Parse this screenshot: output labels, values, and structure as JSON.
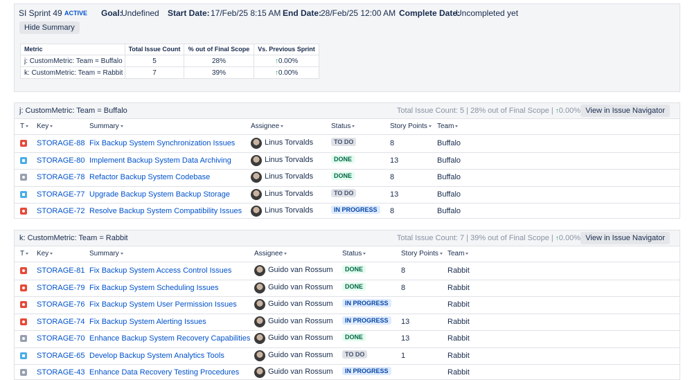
{
  "header": {
    "sprint": "SI Sprint 49",
    "state": "ACTIVE",
    "goal_label": "Goal:",
    "goal": "Undefined",
    "start_label": "Start Date:",
    "start": "17/Feb/25 8:15 AM",
    "end_label": "End Date:",
    "end": "28/Feb/25 12:00 AM",
    "complete_label": "Complete Date:",
    "complete": "Uncompleted yet",
    "toggle": "Hide Summary"
  },
  "summary": {
    "columns": [
      "Metric",
      "Total Issue Count",
      "% out of Final Scope",
      "Vs. Previous Sprint"
    ],
    "rows": [
      [
        "j: CustomMetric: Team = Buffalo",
        "5",
        "28%",
        "0.00%"
      ],
      [
        "k: CustomMetric: Team = Rabbit",
        "7",
        "39%",
        "0.00%"
      ]
    ]
  },
  "groups": [
    {
      "title": "j: CustomMetric: Team = Buffalo",
      "stats": "Total Issue Count: 5 | 28% out of Final Scope |",
      "delta": "0.00%",
      "button": "View in Issue Navigator",
      "columns": [
        "T",
        "Key",
        "Summary",
        "Assignee",
        "Status",
        "Story Points",
        "Team"
      ],
      "issues": [
        {
          "type": "bug",
          "key": "STORAGE-88",
          "summary": "Fix Backup System Synchronization Issues",
          "assignee": "Linus Torvalds",
          "status": "TO DO",
          "points": "8",
          "team": "Buffalo"
        },
        {
          "type": "task",
          "key": "STORAGE-80",
          "summary": "Implement Backup System Data Archiving",
          "assignee": "Linus Torvalds",
          "status": "DONE",
          "points": "13",
          "team": "Buffalo"
        },
        {
          "type": "improvement",
          "key": "STORAGE-78",
          "summary": "Refactor Backup System Codebase",
          "assignee": "Linus Torvalds",
          "status": "DONE",
          "points": "8",
          "team": "Buffalo"
        },
        {
          "type": "task",
          "key": "STORAGE-77",
          "summary": "Upgrade Backup System Backup Storage",
          "assignee": "Linus Torvalds",
          "status": "TO DO",
          "points": "13",
          "team": "Buffalo"
        },
        {
          "type": "bug",
          "key": "STORAGE-72",
          "summary": "Resolve Backup System Compatibility Issues",
          "assignee": "Linus Torvalds",
          "status": "IN PROGRESS",
          "points": "8",
          "team": "Buffalo"
        }
      ]
    },
    {
      "title": "k: CustomMetric: Team = Rabbit",
      "stats": "Total Issue Count: 7 | 39% out of Final Scope |",
      "delta": "0.00%",
      "button": "View in Issue Navigator",
      "columns": [
        "T",
        "Key",
        "Summary",
        "Assignee",
        "Status",
        "Story Points",
        "Team"
      ],
      "issues": [
        {
          "type": "bug",
          "key": "STORAGE-81",
          "summary": "Fix Backup System Access Control Issues",
          "assignee": "Guido van Rossum",
          "status": "DONE",
          "points": "8",
          "team": "Rabbit"
        },
        {
          "type": "bug",
          "key": "STORAGE-79",
          "summary": "Fix Backup System Scheduling Issues",
          "assignee": "Guido van Rossum",
          "status": "DONE",
          "points": "8",
          "team": "Rabbit"
        },
        {
          "type": "bug",
          "key": "STORAGE-76",
          "summary": "Fix Backup System User Permission Issues",
          "assignee": "Guido van Rossum",
          "status": "IN PROGRESS",
          "team": "Rabbit"
        },
        {
          "type": "bug",
          "key": "STORAGE-74",
          "summary": "Fix Backup System Alerting Issues",
          "assignee": "Guido van Rossum",
          "status": "IN PROGRESS",
          "points": "13",
          "team": "Rabbit"
        },
        {
          "type": "improvement",
          "key": "STORAGE-70",
          "summary": "Enhance Backup System Recovery Capabilities",
          "assignee": "Guido van Rossum",
          "status": "DONE",
          "points": "13",
          "team": "Rabbit"
        },
        {
          "type": "task",
          "key": "STORAGE-65",
          "summary": "Develop Backup System Analytics Tools",
          "assignee": "Guido van Rossum",
          "status": "TO DO",
          "points": "1",
          "team": "Rabbit"
        },
        {
          "type": "improvement",
          "key": "STORAGE-43",
          "summary": "Enhance Data Recovery Testing Procedures",
          "assignee": "Guido van Rossum",
          "status": "IN PROGRESS",
          "team": "Rabbit"
        }
      ]
    }
  ]
}
